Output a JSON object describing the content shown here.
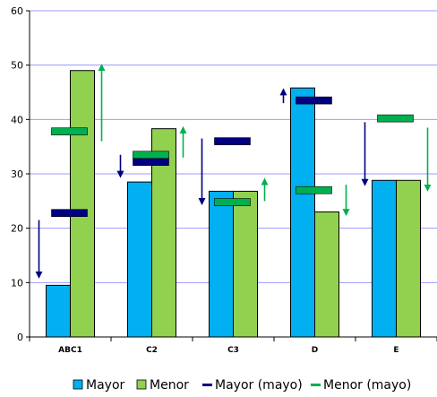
{
  "chart_data": {
    "type": "bar",
    "categories": [
      "ABC1",
      "C2",
      "C3",
      "D",
      "E"
    ],
    "ylim": [
      0,
      60
    ],
    "yticks": [
      0,
      10,
      20,
      30,
      40,
      50,
      60
    ],
    "grid": true,
    "legend_position": "bottom",
    "series": [
      {
        "name": "Mayor",
        "kind": "bar",
        "color": "#00B0F0",
        "values": [
          9.5,
          28.5,
          26.8,
          45.8,
          28.8
        ]
      },
      {
        "name": "Menor",
        "kind": "bar",
        "color": "#92D050",
        "values": [
          49,
          38.3,
          26.8,
          23,
          28.8
        ]
      },
      {
        "name": "Mayor (mayo)",
        "kind": "marker",
        "color": "#000080",
        "values": [
          22.8,
          32.2,
          36,
          43.5,
          null
        ]
      },
      {
        "name": "Menor (mayo)",
        "kind": "marker",
        "color": "#00B050",
        "values": [
          37.8,
          33.5,
          24.8,
          27,
          40.2
        ]
      }
    ],
    "arrows": [
      {
        "category": "ABC1",
        "series": "Mayor",
        "color": "#000080",
        "from": 21.5,
        "to": 11
      },
      {
        "category": "ABC1",
        "series": "Menor",
        "color": "#00B050",
        "from": 36,
        "to": 50
      },
      {
        "category": "C2",
        "series": "Mayor",
        "color": "#000080",
        "from": 33.5,
        "to": 29.5
      },
      {
        "category": "C2",
        "series": "Menor",
        "color": "#00B050",
        "from": 33,
        "to": 38.5
      },
      {
        "category": "C3",
        "series": "Mayor",
        "color": "#000080",
        "from": 36.5,
        "to": 24.5
      },
      {
        "category": "C3",
        "series": "Menor",
        "color": "#00B050",
        "from": 25,
        "to": 29
      },
      {
        "category": "D",
        "series": "Mayor",
        "color": "#000080",
        "from": 43,
        "to": 45.5
      },
      {
        "category": "D",
        "series": "Menor",
        "color": "#00B050",
        "from": 28,
        "to": 22.5
      },
      {
        "category": "E",
        "series": "Mayor",
        "color": "#000080",
        "from": 39.5,
        "to": 28
      },
      {
        "category": "E",
        "series": "Menor",
        "color": "#00B050",
        "from": 38.5,
        "to": 27
      }
    ]
  }
}
